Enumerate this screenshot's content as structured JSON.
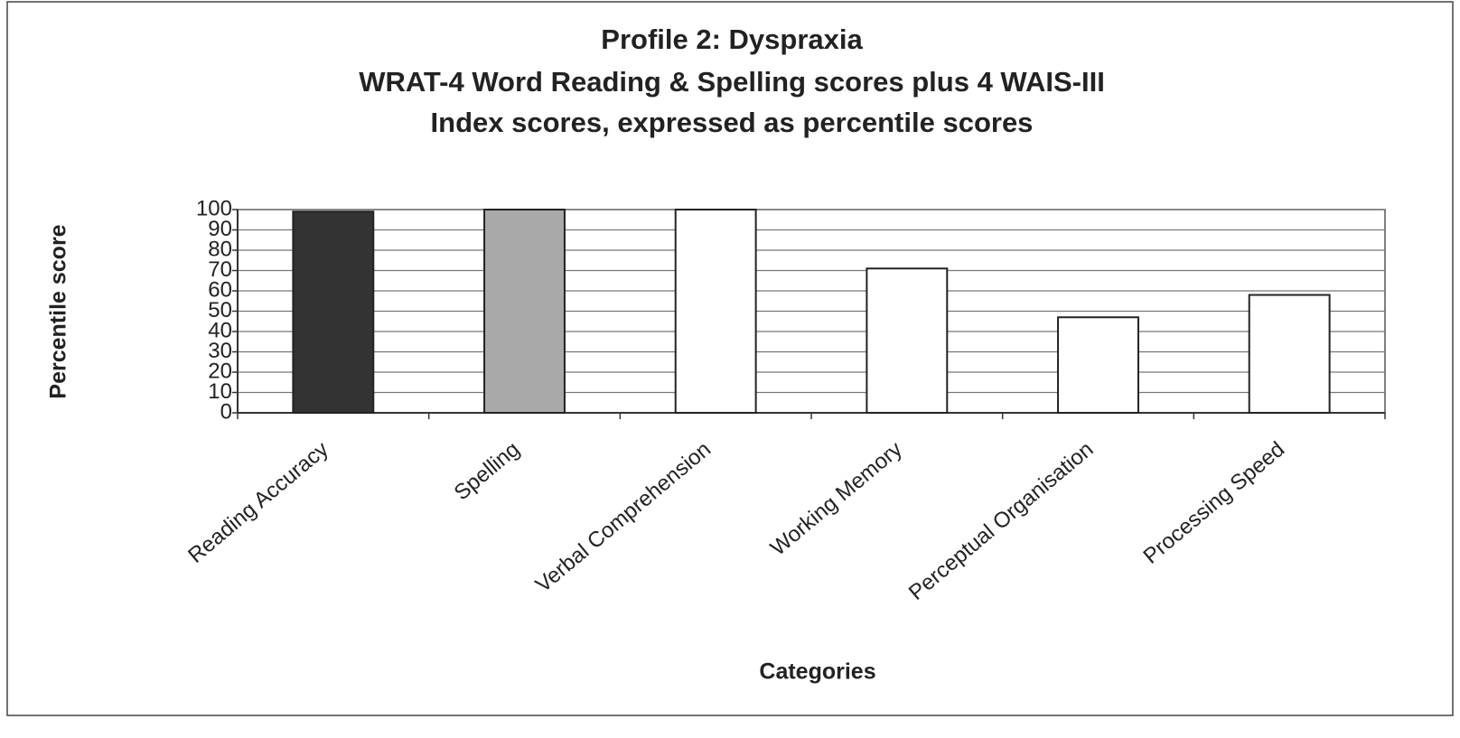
{
  "chart_data": {
    "type": "bar",
    "title": [
      "Profile 2: Dyspraxia",
      "WRAT-4 Word Reading & Spelling scores plus 4 WAIS-III",
      "Index scores, expressed as percentile scores"
    ],
    "x_label": "Categories",
    "y_label": "Percentile score",
    "categories": [
      "Reading Accuracy",
      "Spelling",
      "Verbal Comprehension",
      "Working Memory",
      "Perceptual Organisation",
      "Processing Speed"
    ],
    "values": [
      99,
      100,
      100,
      71,
      47,
      58
    ],
    "colors": [
      "#333333",
      "#a9a9a9",
      "#ffffff",
      "#ffffff",
      "#ffffff",
      "#ffffff"
    ],
    "ylim": [
      0,
      100
    ],
    "yticks": [
      0,
      10,
      20,
      30,
      40,
      50,
      60,
      70,
      80,
      90,
      100
    ],
    "grid": true
  }
}
